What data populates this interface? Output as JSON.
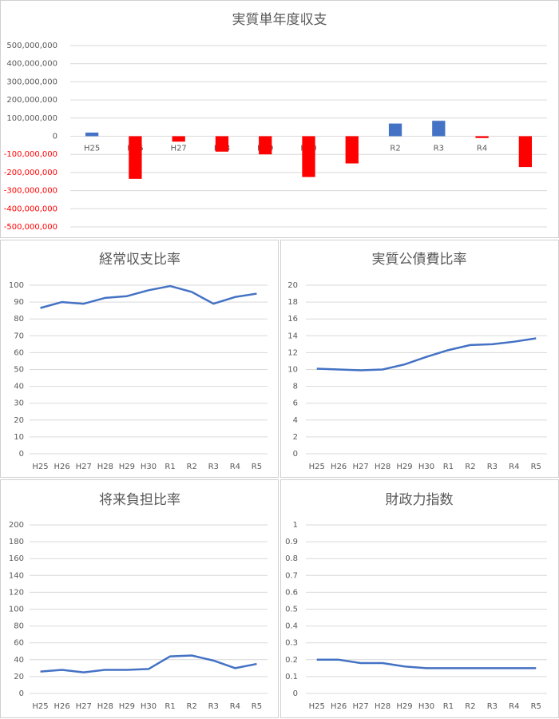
{
  "chart_data": [
    {
      "type": "bar",
      "title": "実質単年度収支",
      "categories": [
        "H25",
        "H26",
        "H27",
        "H28",
        "H29",
        "H30",
        "R1",
        "R2",
        "R3",
        "R4",
        "R5"
      ],
      "values": [
        20000000,
        -235000000,
        -30000000,
        -85000000,
        -100000000,
        -225000000,
        -150000000,
        70000000,
        85000000,
        -10000000,
        -170000000
      ],
      "positive_color": "#4472c4",
      "negative_color": "#ff0000",
      "ylim": [
        -500000000,
        500000000
      ],
      "yticks": [
        {
          "value": -500000000,
          "label": "-500,000,000"
        },
        {
          "value": -400000000,
          "label": "-400,000,000"
        },
        {
          "value": -300000000,
          "label": "-300,000,000"
        },
        {
          "value": -200000000,
          "label": "-200,000,000"
        },
        {
          "value": -100000000,
          "label": "-100,000,000"
        },
        0,
        {
          "value": 100000000,
          "label": "100,000,000"
        },
        {
          "value": 200000000,
          "label": "200,000,000"
        },
        {
          "value": 300000000,
          "label": "300,000,000"
        },
        {
          "value": 400000000,
          "label": "400,000,000"
        },
        {
          "value": 500000000,
          "label": "500,000,000"
        }
      ],
      "grid": true
    },
    {
      "type": "line",
      "title": "経常収支比率",
      "categories": [
        "H25",
        "H26",
        "H27",
        "H28",
        "H29",
        "H30",
        "R1",
        "R2",
        "R3",
        "R4",
        "R5"
      ],
      "values": [
        86.5,
        90,
        89,
        92.5,
        93.5,
        97,
        99.5,
        96,
        89,
        93,
        95
      ],
      "color": "#4472c4",
      "ylim": [
        0,
        100
      ],
      "yticks": [
        0,
        10,
        20,
        30,
        40,
        50,
        60,
        70,
        80,
        90,
        100
      ],
      "grid": true
    },
    {
      "type": "line",
      "title": "実質公債費比率",
      "categories": [
        "H25",
        "H26",
        "H27",
        "H28",
        "H29",
        "H30",
        "R1",
        "R2",
        "R3",
        "R4",
        "R5"
      ],
      "values": [
        10.1,
        10,
        9.9,
        10,
        10.6,
        11.5,
        12.3,
        12.9,
        13,
        13.3,
        13.7
      ],
      "color": "#4472c4",
      "ylim": [
        0,
        20
      ],
      "yticks": [
        0,
        2,
        4,
        6,
        8,
        10,
        12,
        14,
        16,
        18,
        20
      ],
      "grid": true
    },
    {
      "type": "line",
      "title": "将来負担比率",
      "categories": [
        "H25",
        "H26",
        "H27",
        "H28",
        "H29",
        "H30",
        "R1",
        "R2",
        "R3",
        "R4",
        "R5"
      ],
      "values": [
        26,
        28,
        25,
        28,
        28,
        29,
        44,
        45,
        39,
        30,
        35
      ],
      "color": "#4472c4",
      "ylim": [
        0,
        200
      ],
      "yticks": [
        0,
        20,
        40,
        60,
        80,
        100,
        120,
        140,
        160,
        180,
        200
      ],
      "grid": true
    },
    {
      "type": "line",
      "title": "財政力指数",
      "categories": [
        "H25",
        "H26",
        "H27",
        "H28",
        "H29",
        "H30",
        "R1",
        "R2",
        "R3",
        "R4",
        "R5"
      ],
      "values": [
        0.2,
        0.2,
        0.18,
        0.18,
        0.16,
        0.15,
        0.15,
        0.15,
        0.15,
        0.15,
        0.15
      ],
      "color": "#4472c4",
      "ylim": [
        0,
        1
      ],
      "yticks": [
        0,
        0.1,
        0.2,
        0.3,
        0.4,
        0.5,
        0.6,
        0.7,
        0.8,
        0.9,
        1
      ],
      "grid": true
    }
  ]
}
